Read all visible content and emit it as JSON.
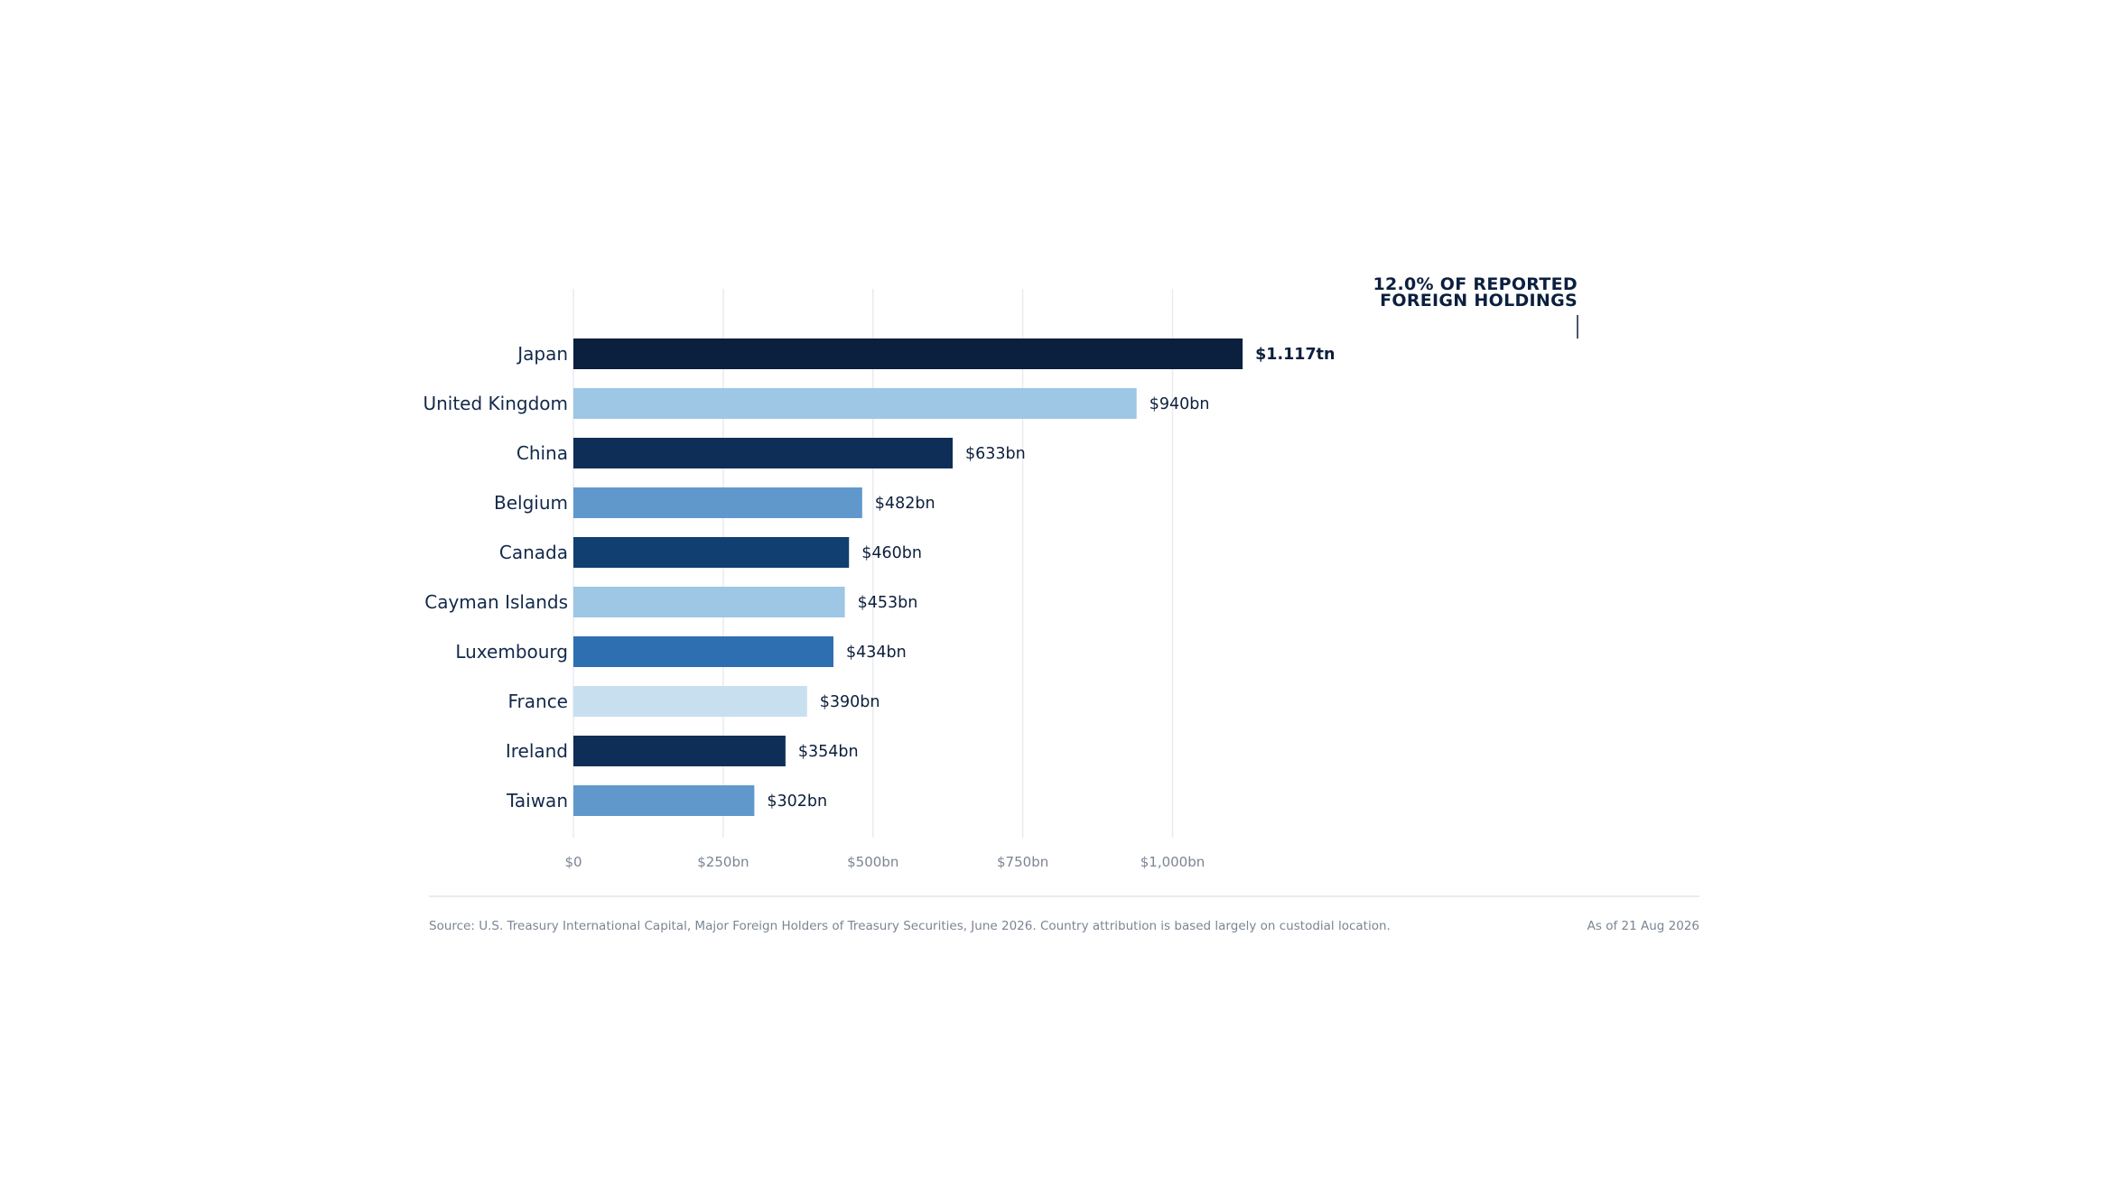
{
  "chart_data": {
    "type": "bar",
    "orientation": "horizontal",
    "categories": [
      "Japan",
      "United Kingdom",
      "China",
      "Belgium",
      "Canada",
      "Cayman Islands",
      "Luxembourg",
      "France",
      "Ireland",
      "Taiwan"
    ],
    "values": [
      1117,
      940,
      633,
      482,
      460,
      453,
      434,
      390,
      354,
      302
    ],
    "value_labels": [
      "$1.117tn",
      "$940bn",
      "$633bn",
      "$482bn",
      "$460bn",
      "$453bn",
      "$434bn",
      "$390bn",
      "$354bn",
      "$302bn"
    ],
    "colors": [
      "#0b1f3f",
      "#9ec6e5",
      "#0e2e58",
      "#6098cc",
      "#123f71",
      "#9ec6e5",
      "#2d6fb0",
      "#c8dff0",
      "#0e2e58",
      "#6098cc"
    ],
    "value_unit": "$bn",
    "xlim": [
      0,
      1250
    ],
    "x_ticks": [
      0,
      250,
      500,
      750,
      1000
    ],
    "x_tick_labels": [
      "$0",
      "$250bn",
      "$500bn",
      "$750bn",
      "$1,000bn"
    ],
    "grid": "vertical",
    "legend": "none",
    "annotation": {
      "target": "Japan",
      "lines": [
        "12.0% OF REPORTED",
        "FOREIGN HOLDINGS"
      ]
    }
  },
  "footer": {
    "source": "Source: U.S. Treasury International Capital, Major Foreign Holders of Treasury Securities, June 2026. Country attribution is based largely on custodial location.",
    "date": "As of 21 Aug 2026"
  }
}
